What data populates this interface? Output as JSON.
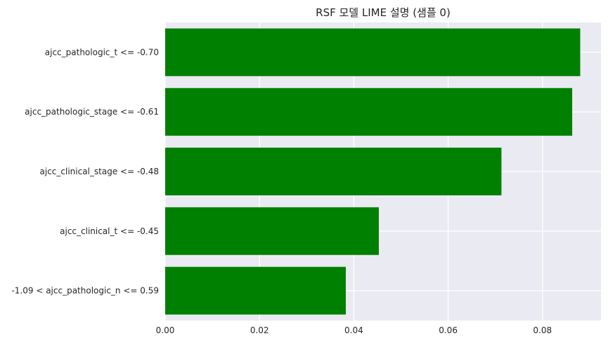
{
  "chart_data": {
    "type": "bar",
    "orientation": "horizontal",
    "title": "RSF 모델 LIME 설명 (샘플 0)",
    "xlabel": "",
    "ylabel": "",
    "categories": [
      "ajcc_pathologic_t <= -0.70",
      "ajcc_pathologic_stage <= -0.61",
      "ajcc_clinical_stage <= -0.48",
      "ajcc_clinical_t <= -0.45",
      "-1.09 < ajcc_pathologic_n <= 0.59"
    ],
    "values": [
      0.088,
      0.0863,
      0.0713,
      0.0453,
      0.0383
    ],
    "xlim": [
      0,
      0.0924
    ],
    "xticks": [
      "0.00",
      "0.02",
      "0.04",
      "0.06",
      "0.08"
    ],
    "xtick_values": [
      0,
      0.02,
      0.04,
      0.06,
      0.08
    ],
    "grid": true,
    "bar_color": "#008000",
    "background_color": "#eaeaf2",
    "grid_color": "#ffffff"
  }
}
